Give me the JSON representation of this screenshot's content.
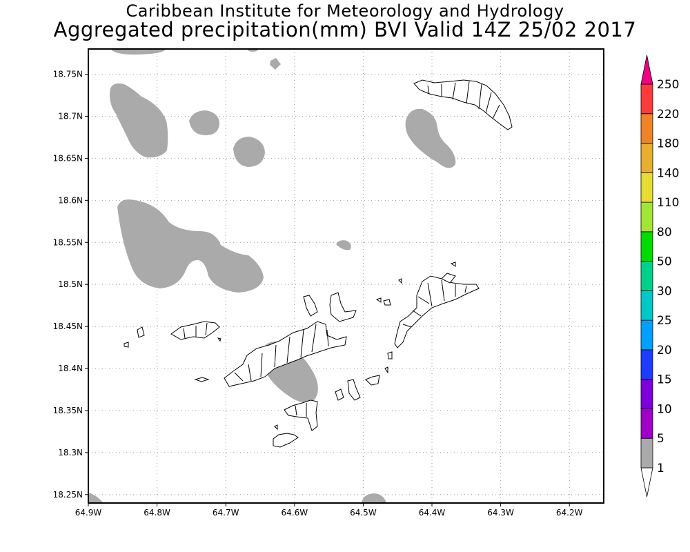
{
  "title": {
    "line1": "Caribbean Institute for Meteorology and Hydrology",
    "line2": "Aggregated precipitation(mm) BVI Valid 14Z 25/02 2017"
  },
  "map": {
    "lon_range": [
      -64.9,
      -64.15
    ],
    "lat_range": [
      18.24,
      18.78
    ],
    "lon_ticks": [
      "64.9W",
      "64.8W",
      "64.7W",
      "64.6W",
      "64.5W",
      "64.4W",
      "64.3W",
      "64.2W"
    ],
    "lat_ticks": [
      "18.25N",
      "18.3N",
      "18.35N",
      "18.4N",
      "18.45N",
      "18.5N",
      "18.55N",
      "18.6N",
      "18.65N",
      "18.7N",
      "18.75N"
    ],
    "gridlines": true,
    "precip_area_color": "#aaaaaa",
    "land_outline_color": "#000000"
  },
  "colorbar": {
    "labels": [
      "1",
      "5",
      "10",
      "15",
      "20",
      "25",
      "30",
      "50",
      "80",
      "110",
      "140",
      "180",
      "220",
      "250"
    ],
    "colors": [
      "#ffffff",
      "#aaaaaa",
      "#a000c8",
      "#7d00dc",
      "#1e3cff",
      "#00a0ff",
      "#00c8c8",
      "#00d28c",
      "#00dc00",
      "#a0e632",
      "#e6dc32",
      "#e6af2d",
      "#f08228",
      "#fa3c3c",
      "#f00082"
    ]
  }
}
